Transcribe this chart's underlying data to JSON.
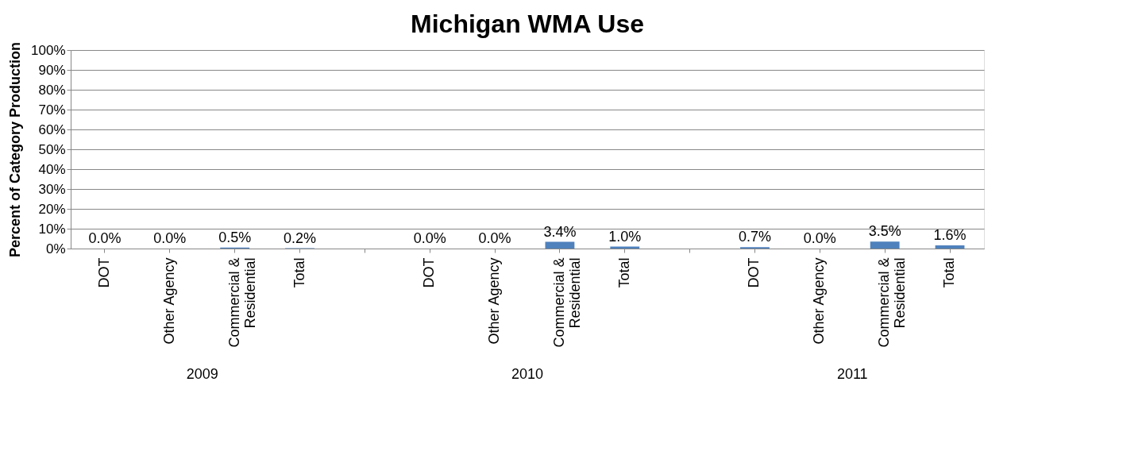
{
  "chart_data": {
    "type": "bar",
    "title": "Michigan WMA Use",
    "ylabel": "Percent of Category Production",
    "categories": [
      "DOT",
      "Other Agency",
      "Commercial & Residential",
      "Total",
      null,
      "DOT",
      "Other Agency",
      "Commercial & Residential",
      "Total",
      null,
      "DOT",
      "Other Agency",
      "Commercial & Residential",
      "Total"
    ],
    "values": [
      0.0,
      0.0,
      0.5,
      0.2,
      null,
      0.0,
      0.0,
      3.4,
      1.0,
      null,
      0.7,
      0.0,
      3.5,
      1.6
    ],
    "color": "#4f81bd",
    "value_labels": [
      "0.0%",
      "0.0%",
      "0.5%",
      "0.2%",
      null,
      "0.0%",
      "0.0%",
      "3.4%",
      "1.0%",
      null,
      "0.7%",
      "0.0%",
      "3.5%",
      "1.6%"
    ],
    "annotations": [
      "2009",
      "2010",
      "2011"
    ],
    "ylim": [
      0,
      100
    ],
    "yticks": [
      {
        "value": 0,
        "label": "0%"
      },
      {
        "value": 10,
        "label": "10%"
      },
      {
        "value": 20,
        "label": "20%"
      },
      {
        "value": 30,
        "label": "30%"
      },
      {
        "value": 40,
        "label": "40%"
      },
      {
        "value": 50,
        "label": "50%"
      },
      {
        "value": 60,
        "label": "60%"
      },
      {
        "value": 70,
        "label": "70%"
      },
      {
        "value": 80,
        "label": "80%"
      },
      {
        "value": 90,
        "label": "90%"
      },
      {
        "value": 100,
        "label": "100%"
      }
    ],
    "grid": "y"
  }
}
